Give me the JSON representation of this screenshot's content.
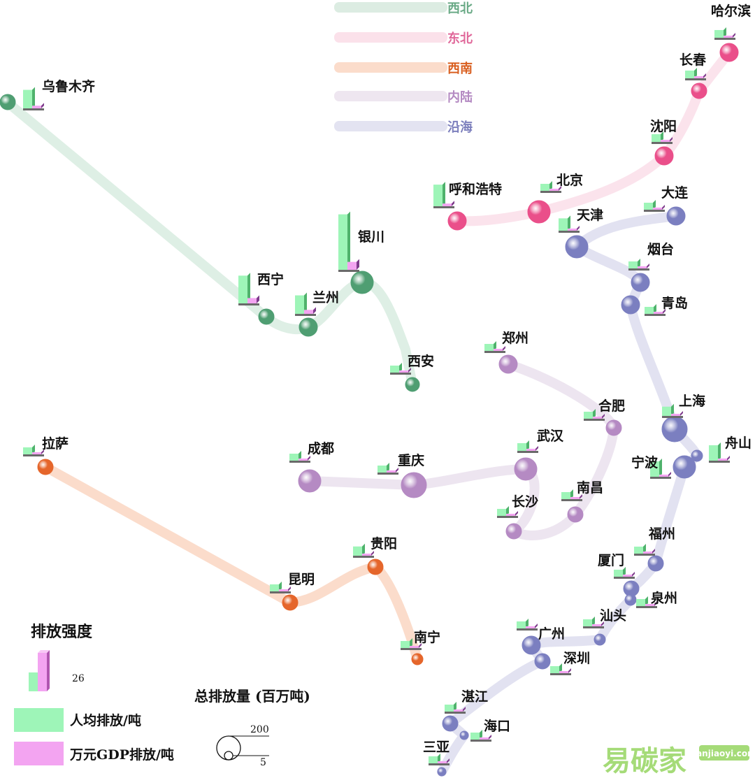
{
  "regions": [
    {
      "id": "northwest",
      "name": "西北",
      "color": "#9fc9b0",
      "dot": "#4f9e72",
      "text": "#6aaa86"
    },
    {
      "id": "northeast",
      "name": "东北",
      "color": "#f6c2d2",
      "dot": "#ea4f8a",
      "text": "#e0689a"
    },
    {
      "id": "southwest",
      "name": "西南",
      "color": "#f6c3a6",
      "dot": "#e5662b",
      "text": "#d95f20"
    },
    {
      "id": "inland",
      "name": "内陆",
      "color": "#e0d3e4",
      "dot": "#b58ac3",
      "text": "#b48ac2"
    },
    {
      "id": "coastal",
      "name": "沿海",
      "color": "#c9c9e4",
      "dot": "#7b7fc0",
      "text": "#7d80bd"
    }
  ],
  "cities": [
    {
      "name": "乌鲁木齐",
      "region": "northwest",
      "size": 11,
      "per_capita": 6,
      "per_gdp": 1
    },
    {
      "name": "西宁",
      "region": "northwest",
      "size": 11,
      "per_capita": 9,
      "per_gdp": 2
    },
    {
      "name": "兰州",
      "region": "northwest",
      "size": 13,
      "per_capita": 6,
      "per_gdp": 1.5
    },
    {
      "name": "银川",
      "region": "northwest",
      "size": 16,
      "per_capita": 18,
      "per_gdp": 3
    },
    {
      "name": "西安",
      "region": "northwest",
      "size": 10,
      "per_capita": 1,
      "per_gdp": 0.5
    },
    {
      "name": "哈尔滨",
      "region": "northeast",
      "size": 13,
      "per_capita": 2.5,
      "per_gdp": 0.5
    },
    {
      "name": "长春",
      "region": "northeast",
      "size": 11,
      "per_capita": 2.5,
      "per_gdp": 0.5
    },
    {
      "name": "沈阳",
      "region": "northeast",
      "size": 13,
      "per_capita": 2.5,
      "per_gdp": 0.5
    },
    {
      "name": "北京",
      "region": "northeast",
      "size": 16,
      "per_capita": 1.5,
      "per_gdp": 0.3
    },
    {
      "name": "呼和浩特",
      "region": "northeast",
      "size": 13,
      "per_capita": 7,
      "per_gdp": 1
    },
    {
      "name": "拉萨",
      "region": "southwest",
      "size": 11,
      "per_capita": 1,
      "per_gdp": 0.3
    },
    {
      "name": "昆明",
      "region": "southwest",
      "size": 11,
      "per_capita": 1.5,
      "per_gdp": 0.3
    },
    {
      "name": "贵阳",
      "region": "southwest",
      "size": 11,
      "per_capita": 3,
      "per_gdp": 0.5
    },
    {
      "name": "南宁",
      "region": "southwest",
      "size": 8,
      "per_capita": 1,
      "per_gdp": 0.2
    },
    {
      "name": "成都",
      "region": "inland",
      "size": 16,
      "per_capita": 2,
      "per_gdp": 0.3
    },
    {
      "name": "重庆",
      "region": "inland",
      "size": 18,
      "per_capita": 2,
      "per_gdp": 0.4
    },
    {
      "name": "郑州",
      "region": "inland",
      "size": 13,
      "per_capita": 2,
      "per_gdp": 0.3
    },
    {
      "name": "合肥",
      "region": "inland",
      "size": 11,
      "per_capita": 2,
      "per_gdp": 0.3
    },
    {
      "name": "武汉",
      "region": "inland",
      "size": 16,
      "per_capita": 2.5,
      "per_gdp": 0.4
    },
    {
      "name": "长沙",
      "region": "inland",
      "size": 11,
      "per_capita": 1,
      "per_gdp": 0.2
    },
    {
      "name": "南昌",
      "region": "inland",
      "size": 11,
      "per_capita": 1.5,
      "per_gdp": 0.2
    },
    {
      "name": "天津",
      "region": "coastal",
      "size": 16,
      "per_capita": 4,
      "per_gdp": 0.6
    },
    {
      "name": "大连",
      "region": "coastal",
      "size": 13,
      "per_capita": 2,
      "per_gdp": 0.3
    },
    {
      "name": "烟台",
      "region": "coastal",
      "size": 13,
      "per_capita": 2,
      "per_gdp": 0.3
    },
    {
      "name": "青岛",
      "region": "coastal",
      "size": 13,
      "per_capita": 2,
      "per_gdp": 0.3
    },
    {
      "name": "上海",
      "region": "coastal",
      "size": 18,
      "per_capita": 3,
      "per_gdp": 0.5
    },
    {
      "name": "宁波",
      "region": "coastal",
      "size": 16,
      "per_capita": 5,
      "per_gdp": 0.7
    },
    {
      "name": "舟山",
      "region": "coastal",
      "size": 8,
      "per_capita": 5,
      "per_gdp": 0.7
    },
    {
      "name": "福州",
      "region": "coastal",
      "size": 11,
      "per_capita": 1.5,
      "per_gdp": 0.2
    },
    {
      "name": "厦门",
      "region": "coastal",
      "size": 11,
      "per_capita": 1.5,
      "per_gdp": 0.2
    },
    {
      "name": "泉州",
      "region": "coastal",
      "size": 8,
      "per_capita": 1.5,
      "per_gdp": 0.2
    },
    {
      "name": "汕头",
      "region": "coastal",
      "size": 8,
      "per_capita": 1.5,
      "per_gdp": 0.2
    },
    {
      "name": "广州",
      "region": "coastal",
      "size": 13,
      "per_capita": 1.5,
      "per_gdp": 0.2
    },
    {
      "name": "深圳",
      "region": "coastal",
      "size": 11,
      "per_capita": 1,
      "per_gdp": 0.1
    },
    {
      "name": "湛江",
      "region": "coastal",
      "size": 11,
      "per_capita": 1,
      "per_gdp": 0.2
    },
    {
      "name": "海口",
      "region": "coastal",
      "size": 6,
      "per_capita": 1,
      "per_gdp": 0.2
    },
    {
      "name": "三亚",
      "region": "coastal",
      "size": 6,
      "per_capita": 1,
      "per_gdp": 0.2
    }
  ],
  "legend": {
    "intensity_title": "排放强度",
    "intensity_ref": "26",
    "per_capita_label": "人均排放/吨",
    "per_gdp_label": "万元GDP排放/吨",
    "total_title": "总排放量 (百万吨)",
    "total_large": "200",
    "total_small": "5",
    "per_capita_color": "#9ef5b8",
    "per_gdp_color": "#f3a4f1"
  },
  "watermark": {
    "cn": "易碳家",
    "en": "tanjiaoyi.com"
  }
}
